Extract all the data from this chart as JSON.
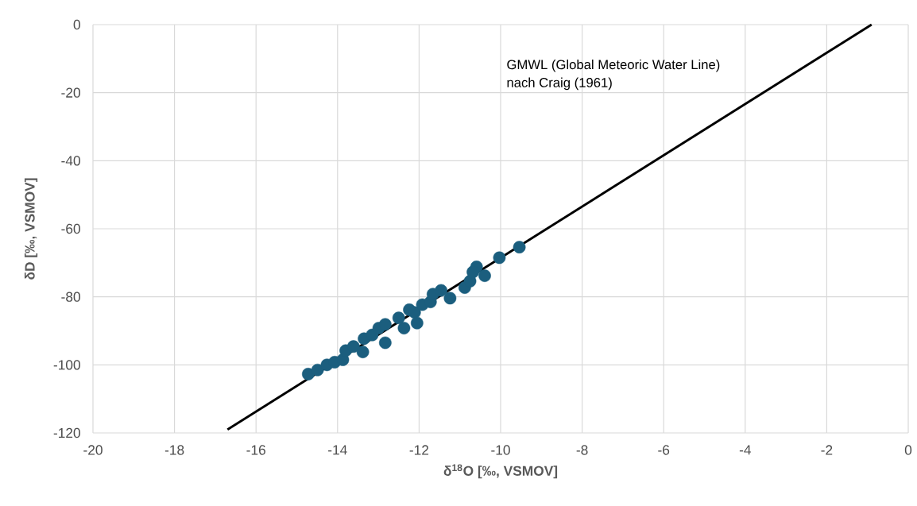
{
  "chart_data": {
    "type": "scatter",
    "xlabel": "δ$^{18}$O [‰, VSMOV]",
    "ylabel": "δD  [‰, VSMOV]",
    "xlim": [
      -20,
      0
    ],
    "ylim": [
      -120,
      0
    ],
    "xticks": [
      -20,
      -18,
      -16,
      -14,
      -12,
      -10,
      -8,
      -6,
      -4,
      -2,
      0
    ],
    "yticks": [
      -120,
      -100,
      -80,
      -60,
      -40,
      -20,
      0
    ],
    "grid": true,
    "series": [
      {
        "color": "#1b5e7e",
        "x": [
          -14.72,
          -14.49,
          -14.26,
          -14.07,
          -13.87,
          -13.8,
          -13.61,
          -13.38,
          -13.35,
          -13.15,
          -12.99,
          -12.83,
          -12.83,
          -12.5,
          -12.37,
          -12.24,
          -12.11,
          -12.05,
          -11.92,
          -11.72,
          -11.66,
          -11.46,
          -11.24,
          -10.88,
          -10.75,
          -10.59,
          -10.68,
          -10.39,
          -10.03,
          -9.54
        ],
        "values": [
          -102.7,
          -101.5,
          -100,
          -99.2,
          -98.5,
          -95.8,
          -94.6,
          -96.2,
          -92.3,
          -91.2,
          -89.2,
          -88.1,
          -93.5,
          -86.2,
          -89.2,
          -83.8,
          -84.6,
          -87.7,
          -82.3,
          -81.5,
          -79.2,
          -78.1,
          -80.4,
          -77.3,
          -75.4,
          -71.2,
          -72.7,
          -73.8,
          -68.5,
          -65.4
        ]
      },
      {
        "type": "line",
        "color": "#000000",
        "x": [
          -16.7,
          -0.9
        ],
        "values": [
          -119,
          0
        ]
      }
    ],
    "annotations": [
      "GMWL (Global Meteoric Water Line) nach Craig (1961)"
    ]
  }
}
